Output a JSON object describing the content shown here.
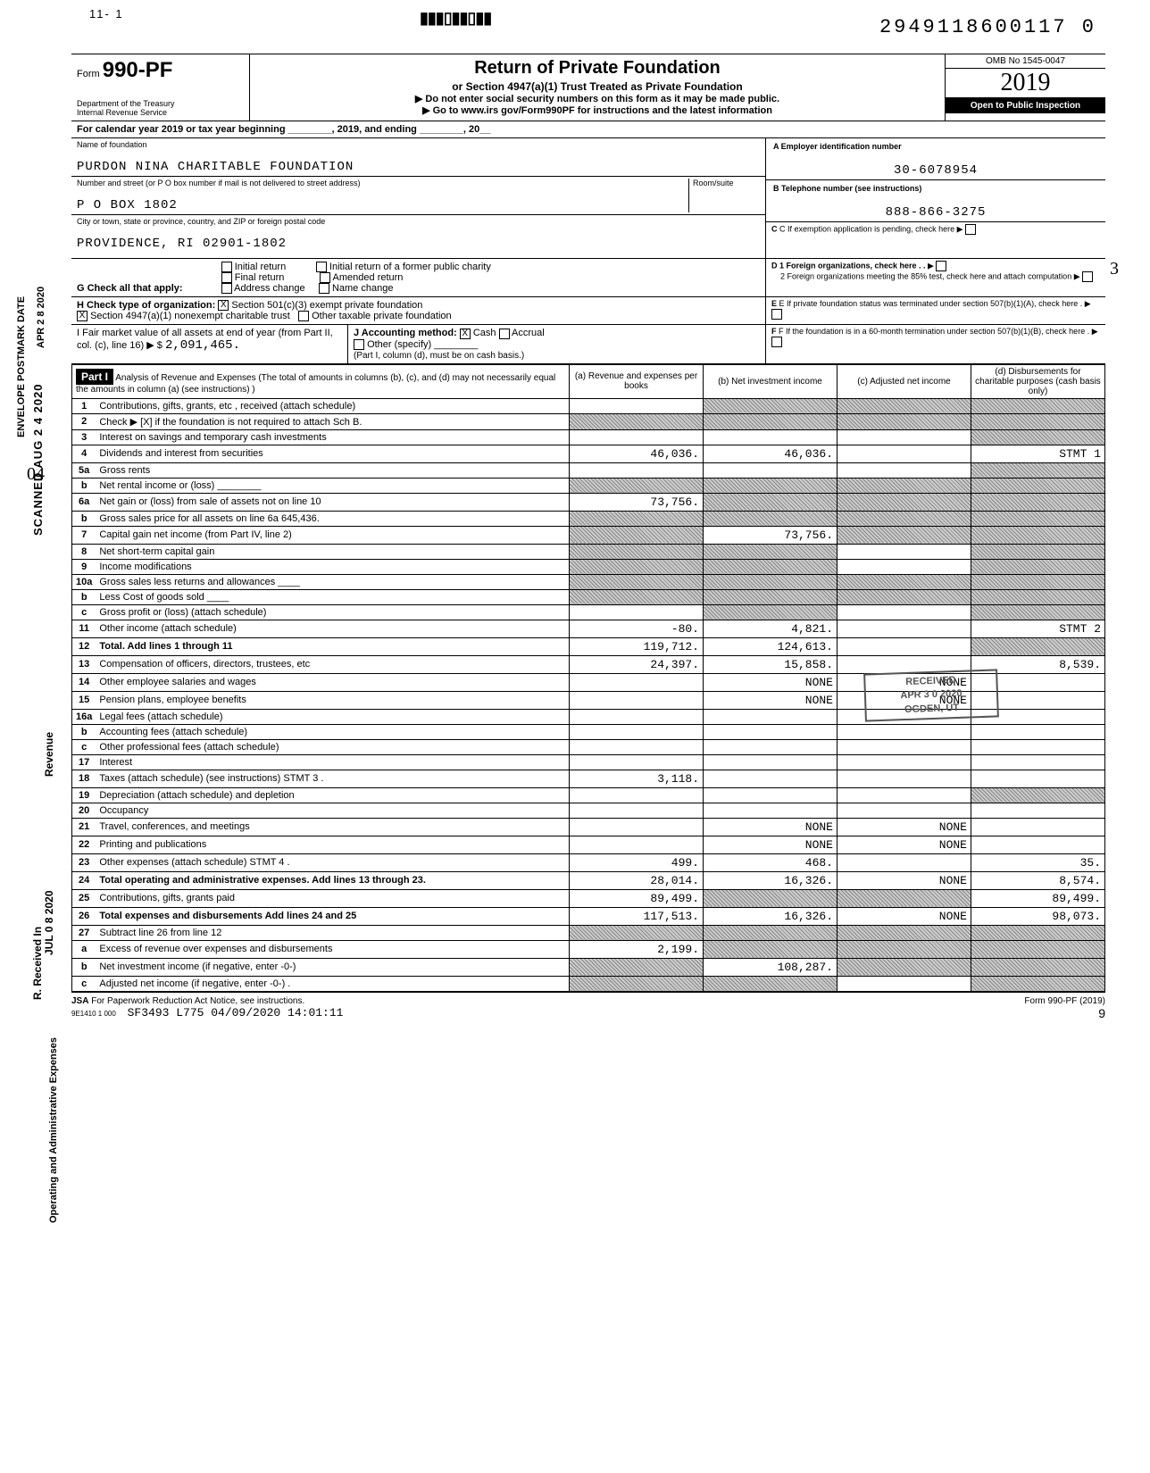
{
  "top_margin": "11- 1",
  "dln": "2949118600117 0",
  "form_number": "990-PF",
  "form_prefix": "Form",
  "dept": "Department of the Treasury\nInternal Revenue Service",
  "header": {
    "title": "Return of Private Foundation",
    "sub": "or Section 4947(a)(1) Trust Treated as Private Foundation",
    "warn": "▶ Do not enter social security numbers on this form as it may be made public.",
    "link": "▶ Go to www.irs gov/Form990PF for instructions and the latest information"
  },
  "omb": "OMB No 1545-0047",
  "tax_year": "2019",
  "inspection": "Open to Public Inspection",
  "cal_year_label": "For calendar year 2019 or tax year beginning ________, 2019, and ending ________, 20__",
  "foundation": {
    "name_label": "Name of foundation",
    "name": "PURDON NINA CHARITABLE FOUNDATION",
    "addr_label": "Number and street (or P O box number if mail is not delivered to street address)",
    "room_label": "Room/suite",
    "addr": "P O BOX 1802",
    "city_label": "City or town, state or province, country, and ZIP or foreign postal code",
    "city": "PROVIDENCE, RI 02901-1802"
  },
  "ein_label": "A  Employer identification number",
  "ein": "30-6078954",
  "phone_label": "B  Telephone number (see instructions)",
  "phone": "888-866-3275",
  "c_label": "C  If exemption application is pending, check here",
  "g_label": "G Check all that apply:",
  "g_opts": [
    "Initial return",
    "Final return",
    "Address change",
    "Initial return of a former public charity",
    "Amended return",
    "Name change"
  ],
  "d_label": "D 1 Foreign organizations, check here . .",
  "d2_label": "2 Foreign organizations meeting the 85% test, check here and attach computation",
  "h_label": "H Check type of organization:",
  "h_opts": [
    "Section 501(c)(3) exempt private foundation",
    "Section 4947(a)(1) nonexempt charitable trust",
    "Other taxable private foundation"
  ],
  "e_label": "E  If private foundation status was terminated under section 507(b)(1)(A), check here .",
  "i_label": "I  Fair market value of all assets at end of year (from Part II, col. (c), line 16) ▶  $",
  "i_val": "2,091,465.",
  "j_label": "J Accounting method:",
  "j_opts": [
    "Cash",
    "Accrual",
    "Other (specify)"
  ],
  "j_note": "(Part I, column (d), must be on cash basis.)",
  "f_label": "F  If the foundation is in a 60-month termination under section 507(b)(1)(B), check here .",
  "part1": {
    "title": "Part I",
    "desc": "Analysis of Revenue and Expenses (The total of amounts in columns (b), (c), and (d) may not necessarily equal the amounts in column (a) (see instructions) )",
    "col_a": "(a) Revenue and expenses per books",
    "col_b": "(b) Net investment income",
    "col_c": "(c) Adjusted net income",
    "col_d": "(d) Disbursements for charitable purposes (cash basis only)"
  },
  "side_labels": {
    "envelope": "ENVELOPE POSTMARK DATE",
    "apr": "APR 2 8 2020",
    "scanned": "SCANNED AUG 2 4 2020",
    "revenue": "Revenue",
    "received": "R. Received In",
    "jul": "JUL 0 8 2020",
    "opadmin": "Operating and Administrative Expenses"
  },
  "lines": [
    {
      "n": "1",
      "d": "Contributions, gifts, grants, etc , received (attach schedule)",
      "a": "",
      "b": "shaded",
      "c": "shaded",
      "dd": "shaded"
    },
    {
      "n": "2",
      "d": "Check ▶ [X] if the foundation is not required to attach Sch B.",
      "a": "shaded",
      "b": "shaded",
      "c": "shaded",
      "dd": "shaded"
    },
    {
      "n": "3",
      "d": "Interest on savings and temporary cash investments",
      "a": "",
      "b": "",
      "c": "",
      "dd": "shaded"
    },
    {
      "n": "4",
      "d": "Dividends and interest from securities",
      "a": "46,036.",
      "b": "46,036.",
      "c": "",
      "dd": "STMT 1"
    },
    {
      "n": "5a",
      "d": "Gross rents",
      "a": "",
      "b": "",
      "c": "",
      "dd": "shaded"
    },
    {
      "n": "b",
      "d": "Net rental income or (loss) ________",
      "a": "shaded",
      "b": "shaded",
      "c": "shaded",
      "dd": "shaded"
    },
    {
      "n": "6a",
      "d": "Net gain or (loss) from sale of assets not on line 10",
      "a": "73,756.",
      "b": "shaded",
      "c": "shaded",
      "dd": "shaded"
    },
    {
      "n": "b",
      "d": "Gross sales price for all assets on line 6a     645,436.",
      "a": "shaded",
      "b": "shaded",
      "c": "shaded",
      "dd": "shaded"
    },
    {
      "n": "7",
      "d": "Capital gain net income (from Part IV, line 2)",
      "a": "shaded",
      "b": "73,756.",
      "c": "shaded",
      "dd": "shaded"
    },
    {
      "n": "8",
      "d": "Net short-term capital gain",
      "a": "shaded",
      "b": "shaded",
      "c": "",
      "dd": "shaded"
    },
    {
      "n": "9",
      "d": "Income modifications",
      "a": "shaded",
      "b": "shaded",
      "c": "",
      "dd": "shaded"
    },
    {
      "n": "10a",
      "d": "Gross sales less returns and allowances ____",
      "a": "shaded",
      "b": "shaded",
      "c": "shaded",
      "dd": "shaded"
    },
    {
      "n": "b",
      "d": "Less Cost of goods sold  ____",
      "a": "shaded",
      "b": "shaded",
      "c": "shaded",
      "dd": "shaded"
    },
    {
      "n": "c",
      "d": "Gross profit or (loss) (attach schedule)",
      "a": "",
      "b": "shaded",
      "c": "",
      "dd": "shaded"
    },
    {
      "n": "11",
      "d": "Other income (attach schedule)",
      "a": "-80.",
      "b": "4,821.",
      "c": "",
      "dd": "STMT 2"
    },
    {
      "n": "12",
      "d": "Total. Add lines 1 through 11",
      "a": "119,712.",
      "b": "124,613.",
      "c": "",
      "dd": "shaded"
    },
    {
      "n": "13",
      "d": "Compensation of officers, directors, trustees, etc",
      "a": "24,397.",
      "b": "15,858.",
      "c": "",
      "dd": "8,539."
    },
    {
      "n": "14",
      "d": "Other employee salaries and wages",
      "a": "",
      "b": "NONE",
      "c": "NONE",
      "dd": ""
    },
    {
      "n": "15",
      "d": "Pension plans, employee benefits",
      "a": "",
      "b": "NONE",
      "c": "NONE",
      "dd": ""
    },
    {
      "n": "16a",
      "d": "Legal fees (attach schedule)",
      "a": "",
      "b": "",
      "c": "",
      "dd": ""
    },
    {
      "n": "b",
      "d": "Accounting fees (attach schedule)",
      "a": "",
      "b": "",
      "c": "",
      "dd": ""
    },
    {
      "n": "c",
      "d": "Other professional fees (attach schedule)",
      "a": "",
      "b": "",
      "c": "",
      "dd": ""
    },
    {
      "n": "17",
      "d": "Interest",
      "a": "",
      "b": "",
      "c": "",
      "dd": ""
    },
    {
      "n": "18",
      "d": "Taxes (attach schedule) (see instructions) STMT 3 .",
      "a": "3,118.",
      "b": "",
      "c": "",
      "dd": ""
    },
    {
      "n": "19",
      "d": "Depreciation (attach schedule) and depletion",
      "a": "",
      "b": "",
      "c": "",
      "dd": "shaded"
    },
    {
      "n": "20",
      "d": "Occupancy",
      "a": "",
      "b": "",
      "c": "",
      "dd": ""
    },
    {
      "n": "21",
      "d": "Travel, conferences, and meetings",
      "a": "",
      "b": "NONE",
      "c": "NONE",
      "dd": ""
    },
    {
      "n": "22",
      "d": "Printing and publications",
      "a": "",
      "b": "NONE",
      "c": "NONE",
      "dd": ""
    },
    {
      "n": "23",
      "d": "Other expenses (attach schedule) STMT 4 .",
      "a": "499.",
      "b": "468.",
      "c": "",
      "dd": "35."
    },
    {
      "n": "24",
      "d": "Total operating and administrative expenses. Add lines 13 through 23.",
      "a": "28,014.",
      "b": "16,326.",
      "c": "NONE",
      "dd": "8,574."
    },
    {
      "n": "25",
      "d": "Contributions, gifts, grants paid",
      "a": "89,499.",
      "b": "shaded",
      "c": "shaded",
      "dd": "89,499."
    },
    {
      "n": "26",
      "d": "Total expenses and disbursements Add lines 24 and 25",
      "a": "117,513.",
      "b": "16,326.",
      "c": "NONE",
      "dd": "98,073."
    },
    {
      "n": "27",
      "d": "Subtract line 26 from line 12",
      "a": "shaded",
      "b": "shaded",
      "c": "shaded",
      "dd": "shaded"
    },
    {
      "n": "a",
      "d": "Excess of revenue over expenses and disbursements",
      "a": "2,199.",
      "b": "shaded",
      "c": "shaded",
      "dd": "shaded"
    },
    {
      "n": "b",
      "d": "Net investment income (if negative, enter -0-)",
      "a": "shaded",
      "b": "108,287.",
      "c": "shaded",
      "dd": "shaded"
    },
    {
      "n": "c",
      "d": "Adjusted net income (if negative, enter -0-) .",
      "a": "shaded",
      "b": "shaded",
      "c": "",
      "dd": "shaded"
    }
  ],
  "footer": {
    "jsa": "JSA",
    "pra": "For Paperwork Reduction Act Notice, see instructions.",
    "code": "9E1410 1 000",
    "stamp": "SF3493 L775 04/09/2020 14:01:11",
    "form": "Form 990-PF (2019)",
    "page": "9"
  },
  "received_stamp": "RECEIVED\nAPR 3 0 2020\nOGDEN, UT",
  "hand_3": "3",
  "hand_04": "04"
}
